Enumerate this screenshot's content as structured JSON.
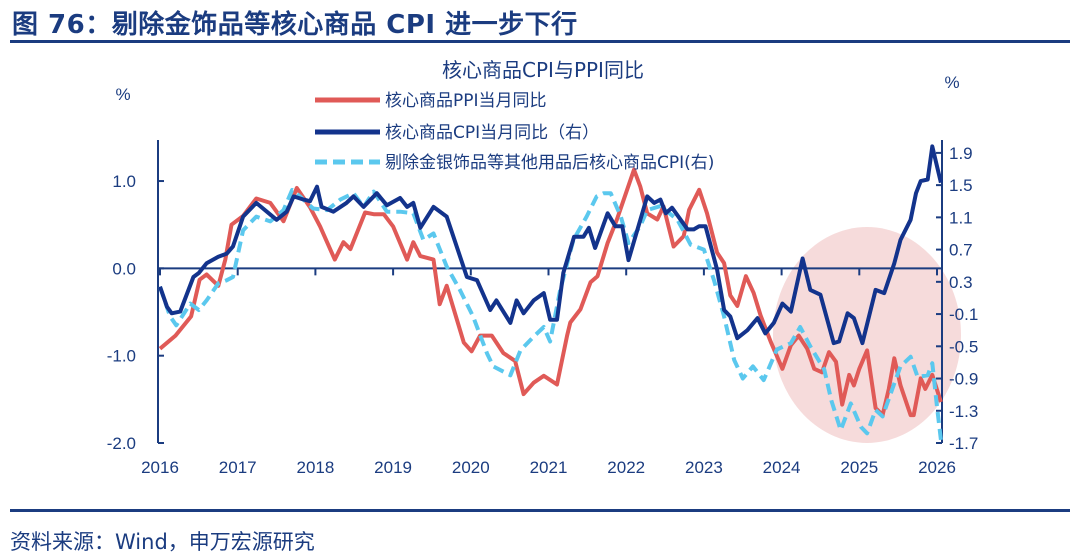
{
  "header": {
    "title": "图 76：剔除金饰品等核心商品 CPI 进一步下行"
  },
  "footer": {
    "source": "资料来源：Wind，申万宏源研究"
  },
  "colors": {
    "ppi": "#e05a57",
    "cpi": "#13338c",
    "cpi_ex_gold": "#5bc8ee",
    "highlight": "#f4d2d2",
    "text": "#1b3c80"
  },
  "chart_data": {
    "type": "line",
    "title": "核心商品CPI与PPI同比",
    "ylabel_left": "%",
    "ylabel_right": "%",
    "x_ticks": [
      "2016",
      "2017",
      "2018",
      "2019",
      "2020",
      "2021",
      "2022",
      "2023",
      "2024",
      "2025",
      "2026"
    ],
    "xlim": [
      2016,
      2026
    ],
    "y_left_ticks": [
      "1.0",
      "0.0",
      "-1.0",
      "-2.0"
    ],
    "ylim_left": [
      -2.0,
      1.47
    ],
    "y_right_ticks": [
      "1.9",
      "1.5",
      "1.1",
      "0.7",
      "0.3",
      "-0.1",
      "-0.5",
      "-0.9",
      "-1.3",
      "-1.7"
    ],
    "ylim_right": [
      -1.7,
      2.06
    ],
    "legend_position": "top-center",
    "highlight": "ellipse over 2024-2026",
    "series": [
      {
        "name": "核心商品PPI当月同比",
        "axis": "left",
        "style": "solid",
        "x": [
          2016.0,
          2016.2,
          2016.4,
          2016.51,
          2016.6,
          2016.75,
          2016.84,
          2016.92,
          2017.07,
          2017.24,
          2017.42,
          2017.59,
          2017.76,
          2017.93,
          2018.06,
          2018.25,
          2018.36,
          2018.45,
          2018.64,
          2018.75,
          2018.88,
          2019.0,
          2019.18,
          2019.26,
          2019.35,
          2019.52,
          2019.6,
          2019.69,
          2019.91,
          2020.01,
          2020.12,
          2020.27,
          2020.42,
          2020.57,
          2020.68,
          2020.81,
          2020.94,
          2021.11,
          2021.24,
          2021.28,
          2021.41,
          2021.54,
          2021.63,
          2021.76,
          2021.88,
          2022.1,
          2022.18,
          2022.27,
          2022.4,
          2022.48,
          2022.61,
          2022.74,
          2022.81,
          2022.94,
          2023.04,
          2023.17,
          2023.26,
          2023.34,
          2023.43,
          2023.54,
          2023.64,
          2023.73,
          2023.86,
          2024.01,
          2024.12,
          2024.22,
          2024.33,
          2024.42,
          2024.52,
          2024.61,
          2024.7,
          2024.78,
          2024.87,
          2024.93,
          2025.0,
          2025.1,
          2025.21,
          2025.3,
          2025.38,
          2025.45,
          2025.53,
          2025.66,
          2025.7,
          2025.79,
          2025.85,
          2025.94,
          2026.05
        ],
        "values": [
          -0.92,
          -0.77,
          -0.55,
          -0.13,
          -0.07,
          -0.2,
          0.1,
          0.5,
          0.6,
          0.8,
          0.75,
          0.54,
          0.92,
          0.7,
          0.48,
          0.1,
          0.3,
          0.22,
          0.64,
          0.62,
          0.62,
          0.48,
          0.1,
          0.3,
          0.14,
          0.1,
          -0.41,
          -0.2,
          -0.85,
          -0.95,
          -0.77,
          -0.77,
          -0.97,
          -1.06,
          -1.44,
          -1.31,
          -1.23,
          -1.33,
          -0.77,
          -0.62,
          -0.47,
          -0.16,
          -0.09,
          0.29,
          0.56,
          1.13,
          0.94,
          0.63,
          0.56,
          0.71,
          0.25,
          0.37,
          0.67,
          0.9,
          0.63,
          0.18,
          0.06,
          -0.31,
          -0.43,
          -0.09,
          -0.28,
          -0.54,
          -0.84,
          -1.15,
          -0.88,
          -0.77,
          -0.92,
          -1.15,
          -1.19,
          -0.96,
          -1.07,
          -1.56,
          -1.22,
          -1.34,
          -1.15,
          -0.94,
          -1.6,
          -1.68,
          -1.38,
          -1.03,
          -1.34,
          -1.68,
          -1.68,
          -1.26,
          -1.38,
          -1.22,
          -1.53
        ]
      },
      {
        "name": "核心商品CPI当月同比（右）",
        "axis": "right",
        "style": "solid",
        "x": [
          2016.0,
          2016.09,
          2016.15,
          2016.26,
          2016.43,
          2016.5,
          2016.6,
          2016.75,
          2016.86,
          2016.94,
          2017.07,
          2017.24,
          2017.5,
          2017.63,
          2017.72,
          2017.85,
          2017.93,
          2018.02,
          2018.08,
          2018.23,
          2018.4,
          2018.49,
          2018.62,
          2018.79,
          2018.92,
          2019.09,
          2019.18,
          2019.26,
          2019.35,
          2019.52,
          2019.69,
          2019.95,
          2020.08,
          2020.25,
          2020.33,
          2020.51,
          2020.59,
          2020.68,
          2020.81,
          2020.94,
          2021.02,
          2021.11,
          2021.19,
          2021.33,
          2021.45,
          2021.52,
          2021.6,
          2021.76,
          2021.86,
          2021.95,
          2022.03,
          2022.27,
          2022.36,
          2022.44,
          2022.51,
          2022.59,
          2022.79,
          2022.87,
          2022.94,
          2023.02,
          2023.17,
          2023.26,
          2023.34,
          2023.43,
          2023.56,
          2023.69,
          2023.79,
          2023.9,
          2024.01,
          2024.12,
          2024.27,
          2024.37,
          2024.5,
          2024.67,
          2024.74,
          2024.85,
          2024.93,
          2025.04,
          2025.21,
          2025.32,
          2025.45,
          2025.53,
          2025.66,
          2025.73,
          2025.79,
          2025.88,
          2025.94,
          2026.05
        ],
        "values": [
          0.24,
          -0.01,
          -0.09,
          -0.07,
          0.36,
          0.41,
          0.53,
          0.61,
          0.65,
          0.74,
          1.11,
          1.28,
          1.07,
          1.17,
          1.36,
          1.32,
          1.3,
          1.48,
          1.23,
          1.17,
          1.28,
          1.36,
          1.23,
          1.4,
          1.25,
          1.34,
          1.23,
          1.28,
          0.97,
          1.23,
          1.11,
          0.36,
          0.32,
          -0.05,
          0.07,
          -0.21,
          0.07,
          -0.09,
          0.07,
          0.16,
          -0.17,
          -0.17,
          0.41,
          0.86,
          0.86,
          0.97,
          0.72,
          1.15,
          0.99,
          0.99,
          0.57,
          1.36,
          1.28,
          1.32,
          1.15,
          1.22,
          0.95,
          0.95,
          0.99,
          0.99,
          0.45,
          -0.05,
          -0.13,
          -0.4,
          -0.3,
          -0.15,
          -0.34,
          -0.21,
          0.03,
          -0.07,
          0.59,
          0.2,
          0.14,
          -0.46,
          -0.44,
          -0.09,
          -0.15,
          -0.46,
          0.2,
          0.16,
          0.53,
          0.82,
          1.07,
          1.4,
          1.55,
          1.57,
          1.98,
          1.53
        ]
      },
      {
        "name": "剔除金银饰品等其他用品后核心商品CPI(右)",
        "axis": "right",
        "style": "dashed",
        "x": [
          2016.0,
          2016.13,
          2016.21,
          2016.39,
          2016.5,
          2016.6,
          2016.75,
          2016.86,
          2016.94,
          2017.07,
          2017.24,
          2017.42,
          2017.59,
          2017.7,
          2017.8,
          2017.97,
          2018.15,
          2018.32,
          2018.49,
          2018.62,
          2018.75,
          2018.92,
          2019.09,
          2019.26,
          2019.39,
          2019.52,
          2019.69,
          2019.86,
          2020.03,
          2020.21,
          2020.29,
          2020.51,
          2020.64,
          2020.81,
          2020.94,
          2021.02,
          2021.15,
          2021.32,
          2021.49,
          2021.62,
          2021.71,
          2021.8,
          2021.93,
          2022.03,
          2022.18,
          2022.27,
          2022.44,
          2022.66,
          2022.83,
          2023.0,
          2023.13,
          2023.26,
          2023.39,
          2023.5,
          2023.63,
          2023.77,
          2023.94,
          2024.12,
          2024.24,
          2024.37,
          2024.55,
          2024.64,
          2024.76,
          2024.89,
          2025.02,
          2025.1,
          2025.21,
          2025.3,
          2025.45,
          2025.53,
          2025.66,
          2025.75,
          2025.88,
          2025.94,
          2026.0,
          2026.05
        ],
        "values": [
          0.24,
          -0.13,
          -0.24,
          0.03,
          -0.05,
          0.07,
          0.28,
          0.32,
          0.36,
          0.94,
          1.11,
          1.05,
          1.19,
          1.44,
          1.36,
          1.21,
          1.19,
          1.32,
          1.4,
          1.23,
          1.42,
          1.17,
          1.17,
          1.15,
          0.82,
          0.9,
          0.49,
          0.2,
          -0.13,
          -0.59,
          -0.75,
          -0.86,
          -0.55,
          -0.38,
          -0.26,
          -0.44,
          0.2,
          0.82,
          1.11,
          1.36,
          1.4,
          1.4,
          1.11,
          0.78,
          0.99,
          1.19,
          1.24,
          1.07,
          0.76,
          0.7,
          0.32,
          -0.13,
          -0.67,
          -0.9,
          -0.75,
          -0.92,
          -0.54,
          -0.46,
          -0.26,
          -0.5,
          -0.79,
          -1.17,
          -1.54,
          -1.21,
          -1.5,
          -1.58,
          -1.29,
          -1.37,
          -0.96,
          -0.75,
          -0.63,
          -0.88,
          -0.86,
          -0.71,
          -1.25,
          -1.66
        ]
      }
    ]
  }
}
